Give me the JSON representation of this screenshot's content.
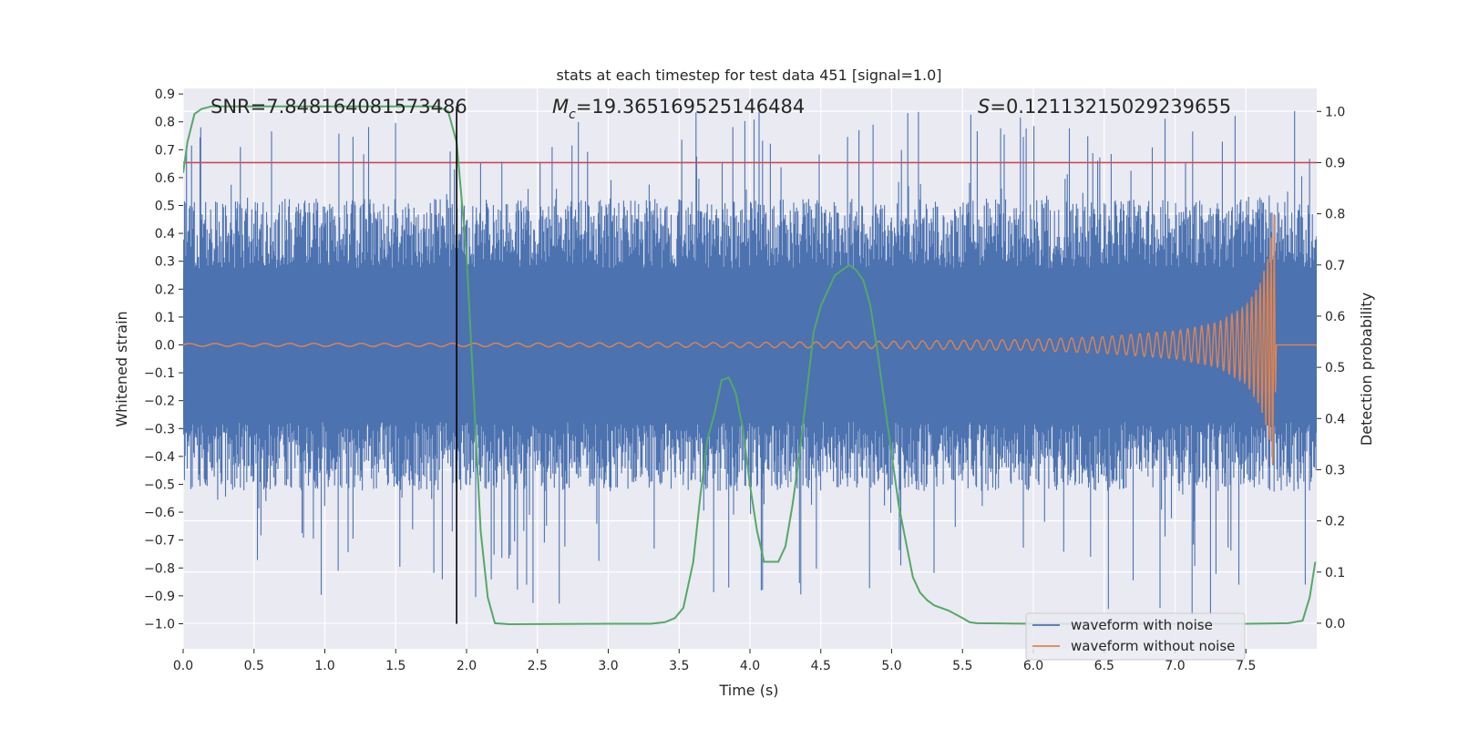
{
  "chart_data": {
    "type": "line",
    "title": "stats at each timestep for test data 451 [signal=1.0]",
    "xlabel": "Time (s)",
    "ylabel_left": "Whitened strain",
    "ylabel_right": "Detection probability",
    "xlim": [
      0.0,
      8.0
    ],
    "ylim_left": [
      -1.09,
      0.92
    ],
    "ylim_right": [
      -0.05,
      1.045
    ],
    "x_ticks": [
      "0.0",
      "0.5",
      "1.0",
      "1.5",
      "2.0",
      "2.5",
      "3.0",
      "3.5",
      "4.0",
      "4.5",
      "5.0",
      "5.5",
      "6.0",
      "6.5",
      "7.0",
      "7.5"
    ],
    "y_ticks_left": [
      "0.9",
      "0.8",
      "0.7",
      "0.6",
      "0.5",
      "0.4",
      "0.3",
      "0.2",
      "0.1",
      "0.0",
      "−0.1",
      "−0.2",
      "−0.3",
      "−0.4",
      "−0.5",
      "−0.6",
      "−0.7",
      "−0.8",
      "−0.9",
      "−1.0"
    ],
    "y_ticks_right": [
      "1.0",
      "0.9",
      "0.8",
      "0.7",
      "0.6",
      "0.5",
      "0.4",
      "0.3",
      "0.2",
      "0.1",
      "0.0"
    ],
    "grid": true,
    "legend_position": "lower-right",
    "annotations": {
      "snr": "SNR=7.848164081573486",
      "mc_symbol": "M",
      "mc_subscript": "c",
      "mc_value": "=19.365169525146484",
      "s_symbol": "S",
      "s_value": "=0.12113215029239655"
    },
    "threshold_right": 0.9,
    "vertical_line_x": 1.93,
    "colors": {
      "noise": "#4c72b0",
      "clean": "#dd8452",
      "probability": "#55a868",
      "threshold": "#c44e52",
      "marker": "#000000",
      "plot_bg": "#eaeaf2",
      "grid": "#ffffff"
    },
    "series": [
      {
        "name": "waveform with noise",
        "axis": "left",
        "description_values": {
          "typical_range": [
            -0.5,
            0.5
          ],
          "max": 0.84,
          "min": -0.97
        }
      },
      {
        "name": "waveform without noise",
        "axis": "left",
        "envelope": [
          [
            0.0,
            0.005
          ],
          [
            2.0,
            0.006
          ],
          [
            4.0,
            0.009
          ],
          [
            5.0,
            0.013
          ],
          [
            6.0,
            0.02
          ],
          [
            6.5,
            0.03
          ],
          [
            7.0,
            0.05
          ],
          [
            7.3,
            0.08
          ],
          [
            7.5,
            0.14
          ],
          [
            7.6,
            0.22
          ],
          [
            7.66,
            0.32
          ],
          [
            7.7,
            0.47
          ],
          [
            7.715,
            0.0
          ],
          [
            8.0,
            0.0
          ]
        ]
      },
      {
        "name": "detection probability",
        "axis": "right",
        "points": [
          [
            0.0,
            0.88
          ],
          [
            0.03,
            0.94
          ],
          [
            0.08,
            0.995
          ],
          [
            0.13,
            1.005
          ],
          [
            0.2,
            1.01
          ],
          [
            1.7,
            1.01
          ],
          [
            1.8,
            1.01
          ],
          [
            1.87,
            1.0
          ],
          [
            1.93,
            0.94
          ],
          [
            2.0,
            0.72
          ],
          [
            2.05,
            0.45
          ],
          [
            2.1,
            0.18
          ],
          [
            2.15,
            0.05
          ],
          [
            2.2,
            0.0
          ],
          [
            2.3,
            -0.002
          ],
          [
            3.0,
            -0.001
          ],
          [
            3.3,
            -0.001
          ],
          [
            3.4,
            0.002
          ],
          [
            3.47,
            0.01
          ],
          [
            3.53,
            0.03
          ],
          [
            3.6,
            0.12
          ],
          [
            3.65,
            0.25
          ],
          [
            3.7,
            0.36
          ],
          [
            3.75,
            0.41
          ],
          [
            3.8,
            0.475
          ],
          [
            3.85,
            0.48
          ],
          [
            3.9,
            0.45
          ],
          [
            3.95,
            0.38
          ],
          [
            4.0,
            0.27
          ],
          [
            4.05,
            0.18
          ],
          [
            4.1,
            0.12
          ],
          [
            4.15,
            0.12
          ],
          [
            4.2,
            0.12
          ],
          [
            4.25,
            0.15
          ],
          [
            4.3,
            0.23
          ],
          [
            4.35,
            0.33
          ],
          [
            4.4,
            0.45
          ],
          [
            4.45,
            0.57
          ],
          [
            4.5,
            0.62
          ],
          [
            4.55,
            0.65
          ],
          [
            4.6,
            0.68
          ],
          [
            4.65,
            0.69
          ],
          [
            4.7,
            0.7
          ],
          [
            4.75,
            0.69
          ],
          [
            4.8,
            0.67
          ],
          [
            4.85,
            0.62
          ],
          [
            4.9,
            0.53
          ],
          [
            4.95,
            0.43
          ],
          [
            5.0,
            0.33
          ],
          [
            5.05,
            0.23
          ],
          [
            5.1,
            0.16
          ],
          [
            5.15,
            0.09
          ],
          [
            5.2,
            0.06
          ],
          [
            5.25,
            0.045
          ],
          [
            5.3,
            0.035
          ],
          [
            5.4,
            0.025
          ],
          [
            5.5,
            0.01
          ],
          [
            5.55,
            0.002
          ],
          [
            5.6,
            0.0
          ],
          [
            6.0,
            -0.001
          ],
          [
            7.0,
            -0.001
          ],
          [
            7.5,
            -0.001
          ],
          [
            7.8,
            0.0
          ],
          [
            7.9,
            0.005
          ],
          [
            7.95,
            0.05
          ],
          [
            7.99,
            0.12
          ]
        ]
      }
    ]
  }
}
